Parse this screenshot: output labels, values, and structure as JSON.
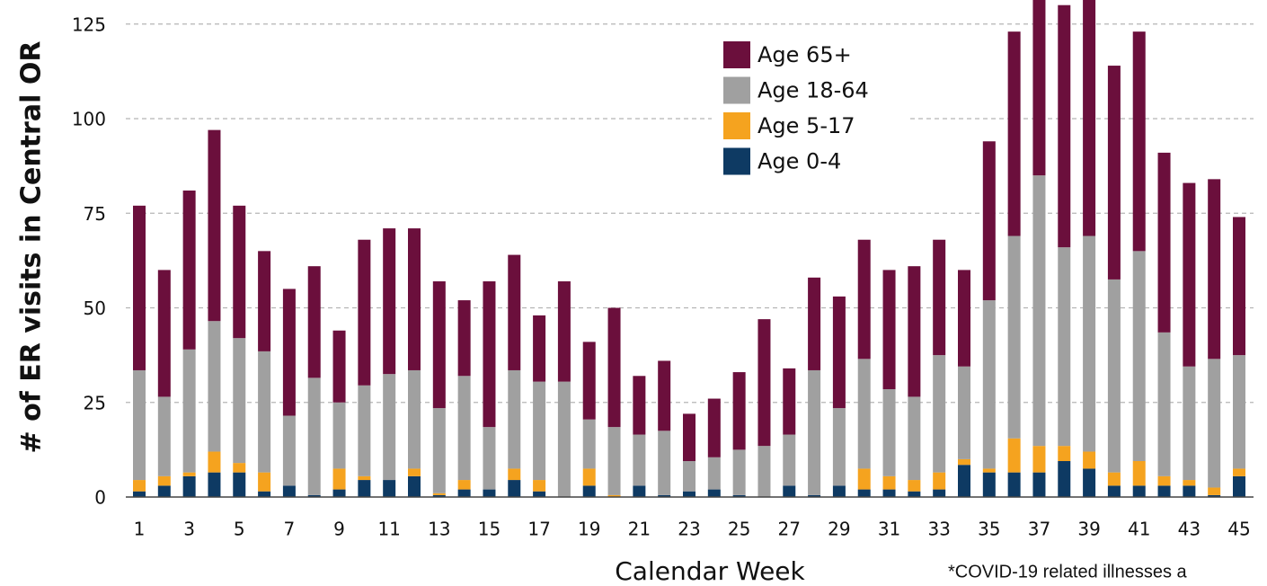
{
  "chart_data": {
    "type": "stacked_bar",
    "y_label": "# of ER visits in Central OR",
    "x_label": "Calendar Week",
    "annotation": "*COVID-19 related illnesses a",
    "categories": [
      1,
      null,
      3,
      null,
      5,
      null,
      7,
      null,
      9,
      null,
      11,
      null,
      13,
      null,
      15,
      null,
      17,
      null,
      19,
      null,
      21,
      null,
      23,
      null,
      25,
      null,
      27,
      null,
      29,
      null,
      31,
      null,
      33,
      null,
      35,
      null,
      37,
      null,
      39,
      null,
      41,
      null,
      43,
      null,
      45
    ],
    "series": [
      {
        "name": "Age 0-4",
        "color": "#0e3a63",
        "values": [
          1.5,
          3,
          5.5,
          6.5,
          6.5,
          1.5,
          3,
          0.5,
          2,
          4.5,
          4.5,
          5.5,
          0.5,
          2,
          2,
          4.5,
          1.5,
          0,
          3,
          0,
          3,
          0.5,
          1.5,
          2,
          0.5,
          0,
          3,
          0.5,
          3,
          2,
          2,
          1.5,
          2,
          8.5,
          6.5,
          6.5,
          6.5,
          9.5,
          7.5,
          3,
          3,
          3,
          3,
          0.5,
          5.5
        ]
      },
      {
        "name": "Age 5-17",
        "color": "#f5a31f",
        "values": [
          3,
          2.5,
          1,
          5.5,
          2.5,
          5,
          0,
          0,
          5.5,
          1,
          0,
          2,
          0.5,
          2.5,
          0,
          3,
          3,
          0,
          4.5,
          0.5,
          0,
          0,
          0,
          0,
          0,
          0,
          0,
          0,
          0,
          5.5,
          3.5,
          3,
          4.5,
          1.5,
          1,
          9,
          7,
          4,
          4.5,
          3.5,
          6.5,
          2.5,
          1.5,
          2,
          2
        ]
      },
      {
        "name": "Age 18-64",
        "color": "#a0a0a0",
        "values": [
          29,
          21,
          32.5,
          34.5,
          33,
          32,
          18.5,
          31,
          17.5,
          24,
          28,
          26,
          22.5,
          27.5,
          16.5,
          26,
          26,
          30.5,
          13,
          18,
          13.5,
          17,
          8,
          8.5,
          12,
          13.5,
          13.5,
          33,
          20.5,
          29,
          23,
          22,
          31,
          24.5,
          44.5,
          53.5,
          71.5,
          52.5,
          57,
          51,
          55.5,
          38,
          30,
          34,
          30
        ]
      },
      {
        "name": "Age 65+",
        "color": "#6b0f3c",
        "values": [
          43.5,
          33.5,
          42,
          50.5,
          35,
          26.5,
          33.5,
          29.5,
          19,
          38.5,
          38.5,
          37.5,
          33.5,
          20,
          38.5,
          30.5,
          17.5,
          26.5,
          20.5,
          31.5,
          15.5,
          18.5,
          12.5,
          15.5,
          20.5,
          33.5,
          17.5,
          24.5,
          29.5,
          31.5,
          31.5,
          34.5,
          30.5,
          25.5,
          42,
          54,
          50,
          64,
          66,
          56.5,
          58,
          47.5,
          48.5,
          47.5,
          36.5
        ]
      }
    ],
    "ylim": [
      0,
      131
    ],
    "yticks": [
      0,
      25,
      50,
      75,
      100,
      125
    ],
    "grid": true,
    "legend": "top-center"
  }
}
